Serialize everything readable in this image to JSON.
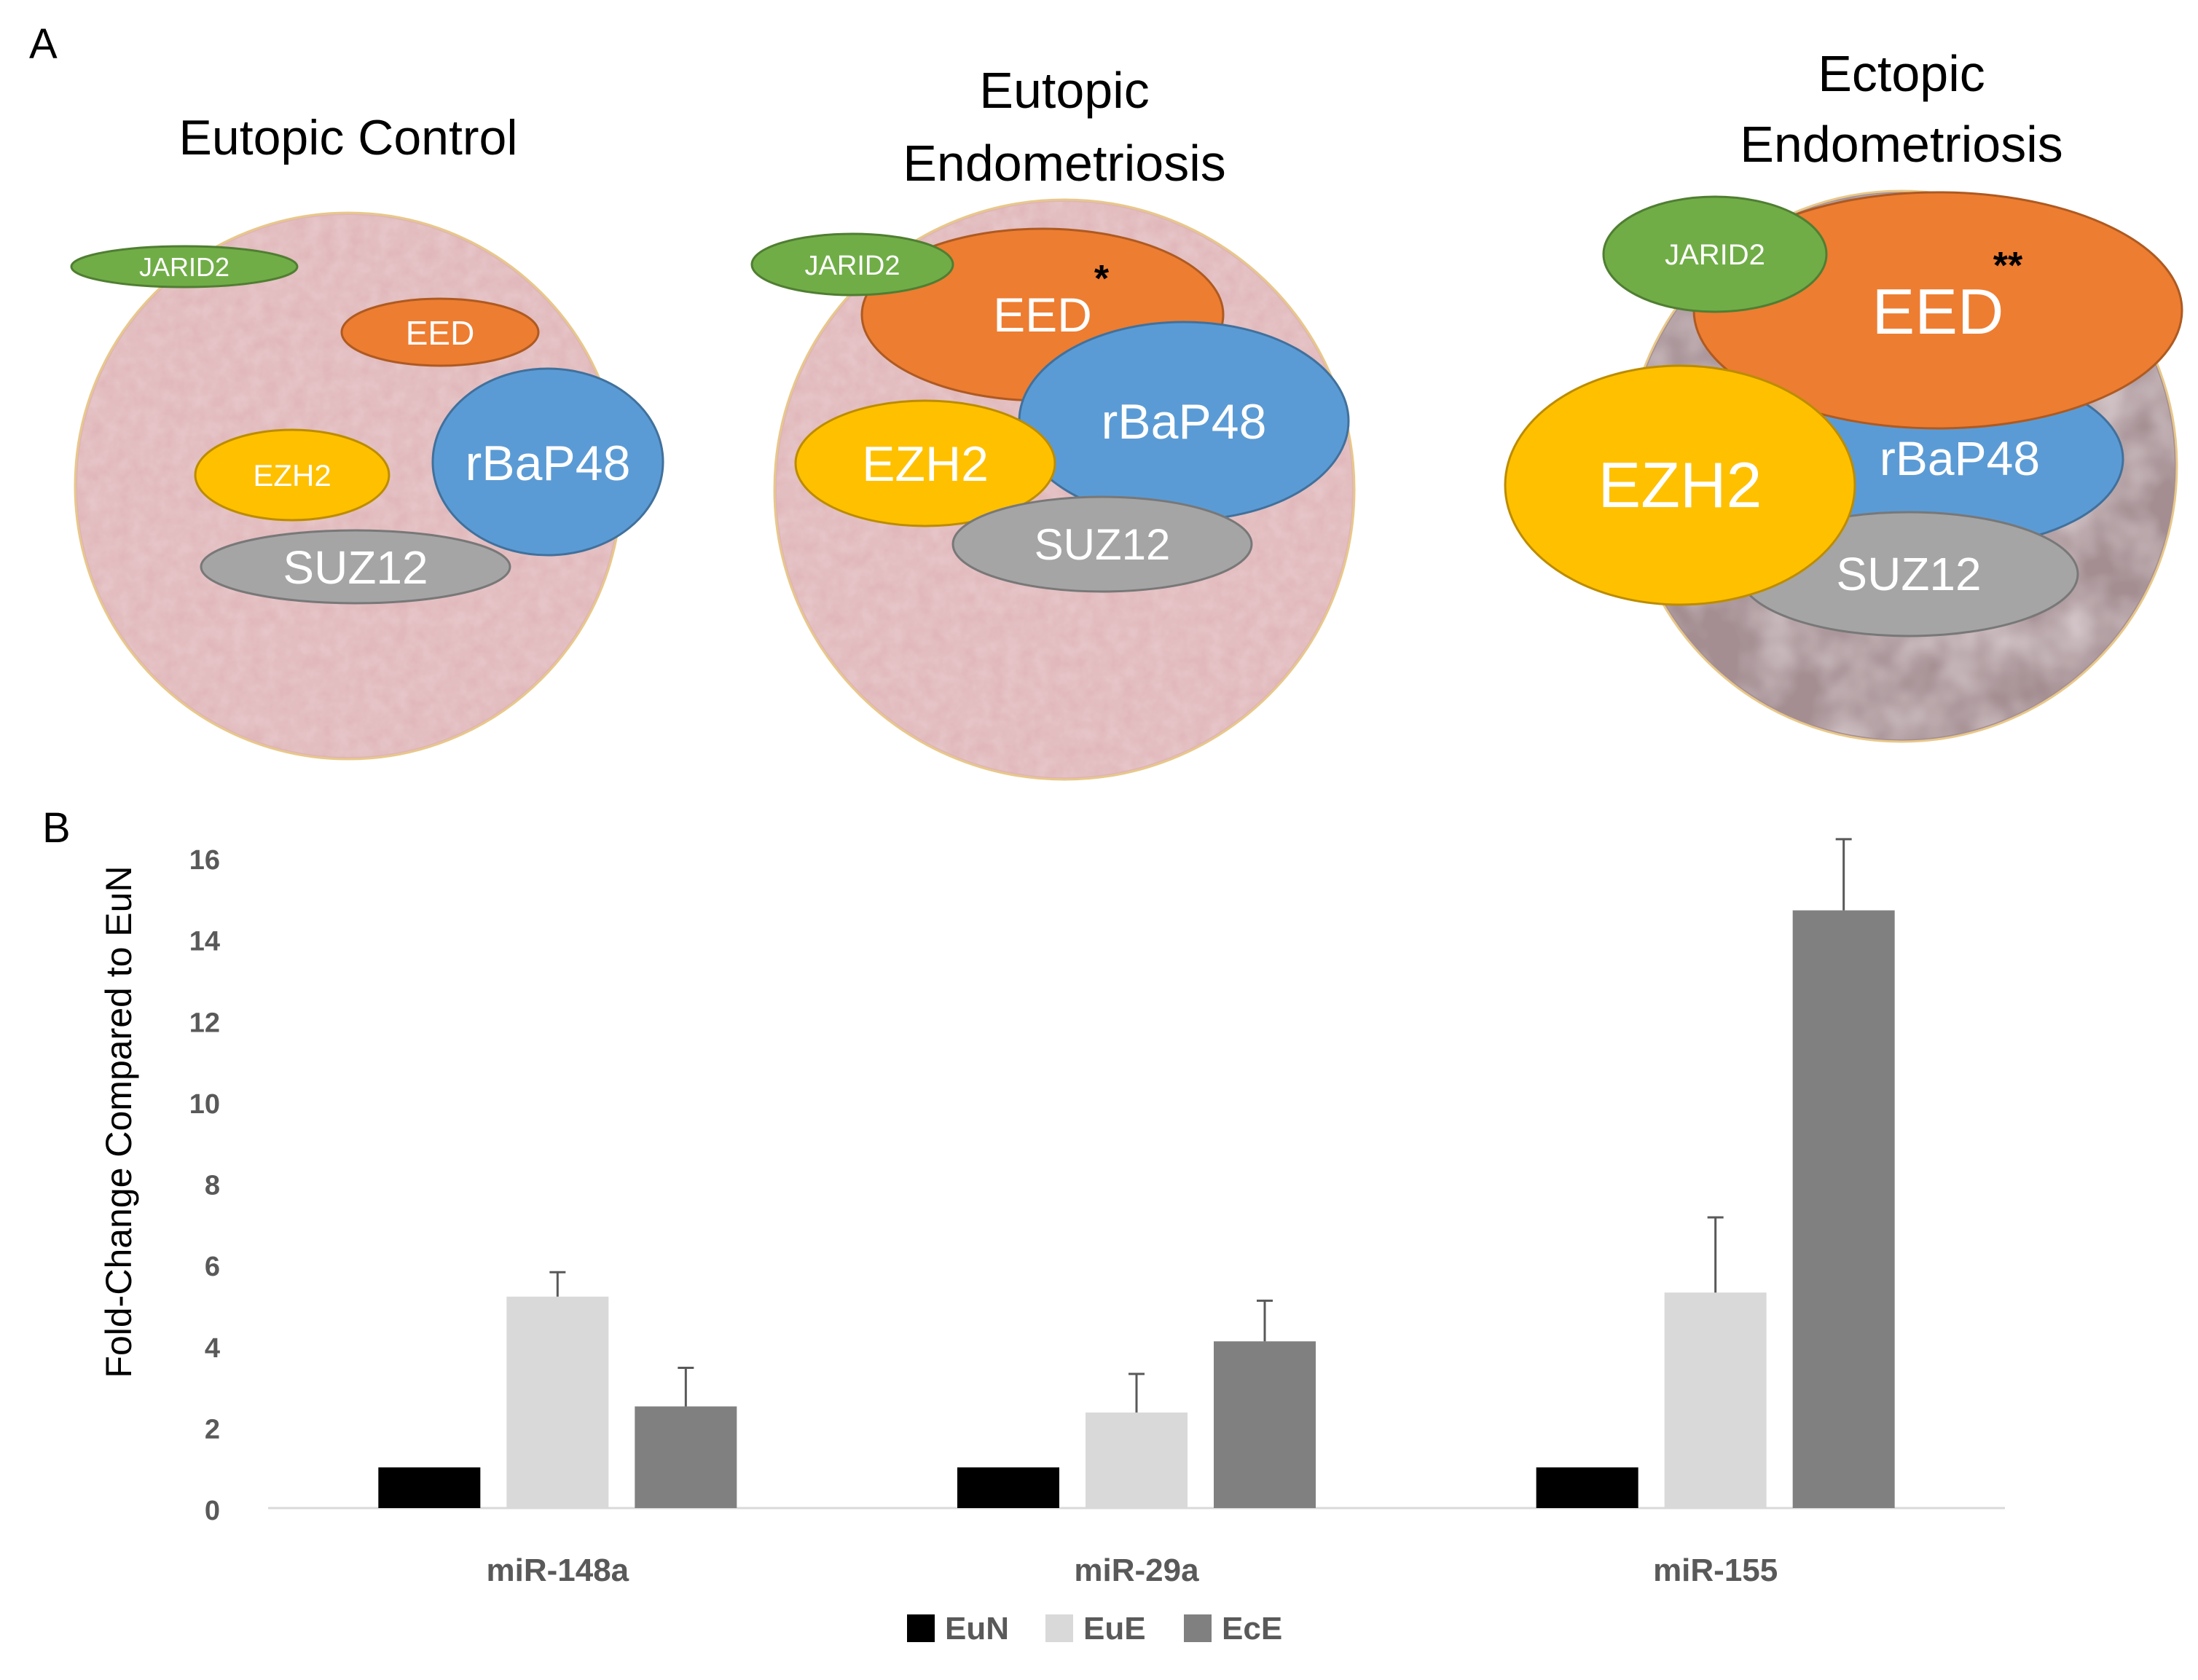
{
  "panel_a": {
    "label": "A",
    "cells": [
      {
        "id": "eutopic-control",
        "title_lines": [
          "Eutopic Control"
        ],
        "texture": "tissue-pink",
        "proteins": [
          {
            "name": "JARID2",
            "color": "#70ad47"
          },
          {
            "name": "EED",
            "color": "#ed7d31"
          },
          {
            "name": "rBaP48",
            "color": "#5b9bd5"
          },
          {
            "name": "EZH2",
            "color": "#ffc000"
          },
          {
            "name": "SUZ12",
            "color": "#a5a5a5"
          }
        ],
        "significance": ""
      },
      {
        "id": "eutopic-endometriosis",
        "title_lines": [
          "Eutopic",
          "Endometriosis"
        ],
        "texture": "tissue-pink",
        "proteins": [
          {
            "name": "JARID2",
            "color": "#70ad47"
          },
          {
            "name": "EED",
            "color": "#ed7d31"
          },
          {
            "name": "rBaP48",
            "color": "#5b9bd5"
          },
          {
            "name": "EZH2",
            "color": "#ffc000"
          },
          {
            "name": "SUZ12",
            "color": "#a5a5a5"
          }
        ],
        "significance": "*"
      },
      {
        "id": "ectopic-endometriosis",
        "title_lines": [
          "Ectopic",
          "Endometriosis"
        ],
        "texture": "tissue-mauve",
        "proteins": [
          {
            "name": "JARID2",
            "color": "#70ad47"
          },
          {
            "name": "EED",
            "color": "#ed7d31"
          },
          {
            "name": "rBaP48",
            "color": "#5b9bd5"
          },
          {
            "name": "EZH2",
            "color": "#ffc000"
          },
          {
            "name": "SUZ12",
            "color": "#a5a5a5"
          }
        ],
        "significance": "**"
      }
    ]
  },
  "chart_data": {
    "panel_label": "B",
    "type": "bar",
    "title": "",
    "xlabel": "",
    "ylabel": "Fold-Change Compared  to EuN",
    "ylim": [
      0,
      16
    ],
    "yticks": [
      0,
      2,
      4,
      6,
      8,
      10,
      12,
      14,
      16
    ],
    "grid": false,
    "legend_position": "bottom",
    "categories": [
      "miR-148a",
      "miR-29a",
      "miR-155"
    ],
    "series": [
      {
        "name": "EuN",
        "color": "#000000",
        "values": [
          1,
          1,
          1
        ],
        "errors": [
          0,
          0,
          0
        ]
      },
      {
        "name": "EuE",
        "color": "#d9d9d9",
        "values": [
          5.2,
          2.35,
          5.3
        ],
        "errors": [
          0.6,
          0.95,
          1.85
        ]
      },
      {
        "name": "EcE",
        "color": "#808080",
        "values": [
          2.5,
          4.1,
          14.7
        ],
        "errors": [
          0.95,
          1.0,
          1.75
        ]
      }
    ]
  }
}
